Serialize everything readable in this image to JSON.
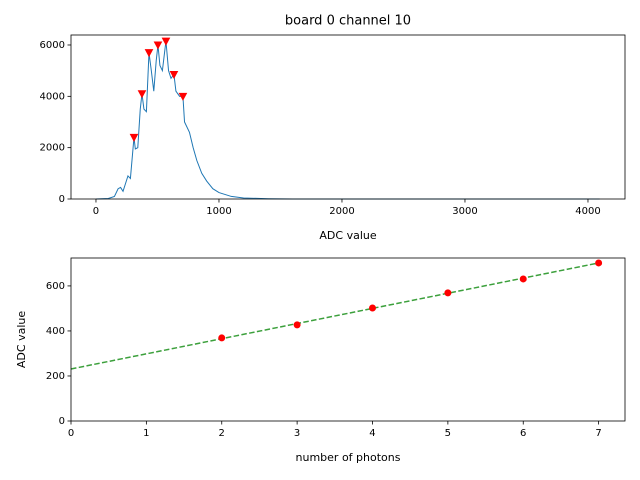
{
  "chart_data": [
    {
      "type": "line",
      "title": "board 0 channel 10",
      "xlabel": "ADC value",
      "xlim": [
        -203,
        4301
      ],
      "ylim": [
        0,
        6389
      ],
      "xticks": [
        0,
        1000,
        2000,
        3000,
        4000
      ],
      "yticks": [
        0,
        2000,
        4000,
        6000
      ],
      "series": [
        {
          "color": "#1f77b4",
          "linestyle": "solid",
          "x": [
            0,
            100,
            150,
            180,
            200,
            220,
            240,
            260,
            280,
            300,
            309,
            320,
            340,
            360,
            374,
            390,
            410,
            431,
            450,
            470,
            490,
            504,
            520,
            540,
            560,
            569,
            590,
            610,
            634,
            650,
            680,
            707,
            720,
            760,
            790,
            820,
            860,
            900,
            950,
            1000,
            1100,
            1200,
            1400,
            1600,
            4095
          ],
          "values": [
            0,
            20,
            100,
            400,
            450,
            300,
            600,
            900,
            800,
            1900,
            2400,
            1950,
            2000,
            3500,
            4100,
            3500,
            3400,
            5700,
            5000,
            4200,
            5400,
            6000,
            5200,
            5000,
            5800,
            6150,
            5000,
            4700,
            4850,
            4200,
            4000,
            4000,
            3000,
            2600,
            2000,
            1500,
            1000,
            700,
            400,
            250,
            100,
            40,
            10,
            0,
            0
          ]
        },
        {
          "color": "#ff0000",
          "marker": "v",
          "x": [
            309,
            374,
            431,
            504,
            569,
            634,
            707
          ],
          "values": [
            2400,
            4100,
            5700,
            6000,
            6150,
            4850,
            4000
          ]
        }
      ]
    },
    {
      "type": "line",
      "xlabel": "number of photons",
      "ylabel": "ADC value",
      "xlim": [
        0,
        7.35
      ],
      "ylim": [
        0,
        724
      ],
      "xticks": [
        0,
        1,
        2,
        3,
        4,
        5,
        6,
        7
      ],
      "yticks": [
        0,
        200,
        400,
        600
      ],
      "series": [
        {
          "color": "#3ca03c",
          "linestyle": "dashed",
          "x": [
            0,
            7
          ],
          "values": [
            231,
            702
          ]
        },
        {
          "color": "#ff0000",
          "marker": "o",
          "x": [
            2,
            3,
            4,
            5,
            6,
            7
          ],
          "values": [
            369,
            427,
            502,
            569,
            631,
            702
          ]
        }
      ]
    }
  ]
}
